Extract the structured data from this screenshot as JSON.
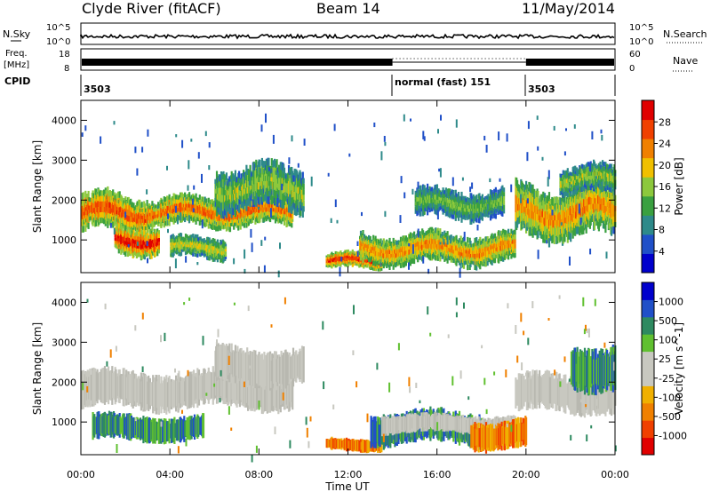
{
  "header": {
    "station": "Clyde River (fitACF)",
    "beam": "Beam 14",
    "date": "11/May/2014"
  },
  "strip": {
    "nsky_label": "N.Sky",
    "nsky_ticks": [
      "10^5",
      "10^0"
    ],
    "nsearch_label": "N.Search",
    "nsearch_ticks": [
      "10^5",
      "10^0"
    ],
    "freq_label_1": "Freq.",
    "freq_label_2": "[MHz]",
    "freq_ticks": [
      "18",
      "8"
    ],
    "nave_label": "Nave",
    "nave_ticks": [
      "60",
      "0"
    ],
    "cpid_label": "CPID",
    "cpid_segments": [
      {
        "label": "3503",
        "start_hour": 0,
        "end_hour": 14
      },
      {
        "label": "normal (fast) 151",
        "start_hour": 14,
        "end_hour": 20
      },
      {
        "label": "3503",
        "start_hour": 20,
        "end_hour": 24
      }
    ]
  },
  "chart_data": [
    {
      "type": "heatmap",
      "panel": "power",
      "ylabel": "Slant Range [km]",
      "xlabel": "",
      "xlim_hours": [
        0,
        24
      ],
      "ylim": [
        180,
        4500
      ],
      "yticks": [
        1000,
        2000,
        3000,
        4000
      ],
      "colorbar": {
        "label": "Power [dB]",
        "ticks": [
          "28",
          "24",
          "20",
          "16",
          "12",
          "8",
          "4"
        ],
        "colors": [
          "#0000cc",
          "#2050c8",
          "#2e8a8a",
          "#3aa040",
          "#8cc83c",
          "#f0c000",
          "#f08000",
          "#f04000",
          "#e00000"
        ]
      },
      "echo_regions": [
        {
          "t0": 0.0,
          "t1": 3.0,
          "r0": 1150,
          "r1": 2200,
          "level": 0.8
        },
        {
          "t0": 1.5,
          "t1": 3.5,
          "r0": 600,
          "r1": 1400,
          "level": 0.9
        },
        {
          "t0": 3.0,
          "t1": 9.5,
          "r0": 1300,
          "r1": 2100,
          "level": 0.75
        },
        {
          "t0": 6.0,
          "t1": 10.0,
          "r0": 1700,
          "r1": 2900,
          "level": 0.5
        },
        {
          "t0": 4.0,
          "t1": 6.5,
          "r0": 500,
          "r1": 1100,
          "level": 0.55
        },
        {
          "t0": 11.0,
          "t1": 13.5,
          "r0": 250,
          "r1": 700,
          "level": 0.85
        },
        {
          "t0": 12.5,
          "t1": 19.5,
          "r0": 350,
          "r1": 1200,
          "level": 0.7
        },
        {
          "t0": 15.0,
          "t1": 19.0,
          "r0": 1500,
          "r1": 2300,
          "level": 0.45
        },
        {
          "t0": 19.5,
          "t1": 24.0,
          "r0": 1000,
          "r1": 2400,
          "level": 0.7
        },
        {
          "t0": 21.5,
          "t1": 24.0,
          "r0": 2100,
          "r1": 2900,
          "level": 0.5
        }
      ]
    },
    {
      "type": "heatmap",
      "panel": "velocity",
      "ylabel": "Slant Range [km]",
      "xlabel": "Time UT",
      "xlim_hours": [
        0,
        24
      ],
      "ylim": [
        180,
        4500
      ],
      "yticks": [
        1000,
        2000,
        3000,
        4000
      ],
      "xticks": [
        "00:00",
        "04:00",
        "08:00",
        "12:00",
        "16:00",
        "20:00",
        "00:00"
      ],
      "colorbar": {
        "label": "Velocity [m s^-1]",
        "ticks": [
          "1000",
          "500",
          "100",
          "25",
          "-25",
          "-100",
          "-500",
          "-1000"
        ],
        "colors": [
          "#e00000",
          "#f04000",
          "#f08000",
          "#f0b000",
          "#c8c8c0",
          "#c8c8c0",
          "#60c030",
          "#2e8a60",
          "#2050c8",
          "#0000cc"
        ]
      },
      "echo_regions": [
        {
          "t0": 0.0,
          "t1": 9.5,
          "r0": 1300,
          "r1": 2300,
          "class": "ground"
        },
        {
          "t0": 6.0,
          "t1": 10.0,
          "r0": 1900,
          "r1": 2900,
          "class": "ground"
        },
        {
          "t0": 0.5,
          "t1": 5.5,
          "r0": 500,
          "r1": 1200,
          "class": "positive"
        },
        {
          "t0": 11.0,
          "t1": 13.5,
          "r0": 250,
          "r1": 600,
          "class": "negative"
        },
        {
          "t0": 13.0,
          "t1": 18.0,
          "r0": 400,
          "r1": 1300,
          "class": "positive"
        },
        {
          "t0": 13.5,
          "t1": 19.5,
          "r0": 700,
          "r1": 1200,
          "class": "ground"
        },
        {
          "t0": 17.5,
          "t1": 20.0,
          "r0": 300,
          "r1": 1100,
          "class": "negative"
        },
        {
          "t0": 19.5,
          "t1": 24.0,
          "r0": 1200,
          "r1": 2200,
          "class": "ground"
        },
        {
          "t0": 22.0,
          "t1": 24.0,
          "r0": 1800,
          "r1": 3000,
          "class": "positive"
        }
      ]
    }
  ]
}
